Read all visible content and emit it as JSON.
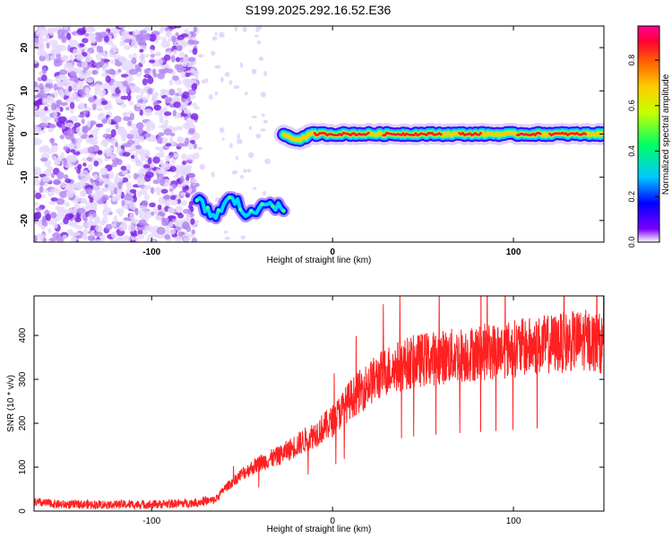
{
  "title": "S199.2025.292.16.52.E36",
  "chart_data": [
    {
      "type": "heatmap",
      "xlabel": "Height of straight line (km)",
      "ylabel": "Frequency (Hz)",
      "xlim": [
        -165,
        150
      ],
      "ylim": [
        -25,
        25
      ],
      "xticks": [
        -100,
        0,
        100
      ],
      "yticks": [
        -20,
        -10,
        0,
        10,
        20
      ],
      "colorbar": {
        "label": "Normalized spectral amplitude",
        "range": [
          0.0,
          0.95
        ],
        "ticks": [
          0.0,
          0.2,
          0.4,
          0.6,
          0.8
        ],
        "colormap": [
          "#ffffff",
          "#7b00ff",
          "#0000ff",
          "#00c8ff",
          "#00ff64",
          "#c8ff00",
          "#ffcc00",
          "#ff6600",
          "#ff0033",
          "#ff0099"
        ]
      },
      "regions": [
        {
          "x_range": [
            -165,
            -75
          ],
          "freq_range": [
            -25,
            25
          ],
          "amplitude": 0.05,
          "description": "noise"
        },
        {
          "x_range": [
            -75,
            -27
          ],
          "freq_center": -17,
          "amplitude": 0.35
        },
        {
          "x_range": [
            -27,
            150
          ],
          "freq_center": 0,
          "amplitude": 0.85
        }
      ],
      "grid": false
    },
    {
      "type": "line",
      "xlabel": "Height of straight line (km)",
      "ylabel": "SNR (10 * v/v)",
      "xlim": [
        -165,
        150
      ],
      "ylim": [
        0,
        490
      ],
      "xticks": [
        -100,
        0,
        100
      ],
      "yticks": [
        0,
        100,
        200,
        300,
        400
      ],
      "color": "#ff2020",
      "x": [
        -165,
        -150,
        -125,
        -100,
        -80,
        -65,
        -60,
        -50,
        -40,
        -30,
        -20,
        -10,
        0,
        10,
        20,
        30,
        40,
        50,
        60,
        70,
        80,
        90,
        100,
        110,
        120,
        130,
        140,
        150
      ],
      "y": [
        20,
        15,
        15,
        15,
        18,
        25,
        50,
        85,
        110,
        125,
        150,
        175,
        205,
        255,
        290,
        320,
        335,
        345,
        350,
        355,
        360,
        365,
        370,
        375,
        380,
        385,
        390,
        380
      ],
      "grid": false
    }
  ]
}
